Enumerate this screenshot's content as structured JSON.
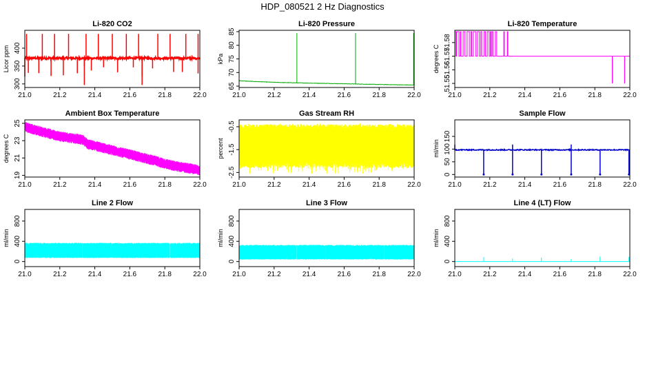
{
  "title": "HDP_080521  2 Hz Diagnostics",
  "chart_data": [
    {
      "type": "line",
      "title": "Li-820 CO2",
      "xlabel": "",
      "ylabel": "Licor ppm",
      "color": "#ff0000",
      "xlim": [
        21.0,
        22.0
      ],
      "ylim": [
        290,
        450
      ],
      "xticks": [
        "21.0",
        "21.2",
        "21.4",
        "21.6",
        "21.8",
        "22.0"
      ],
      "yticks": [
        "300",
        "350",
        "400"
      ],
      "series": [
        {
          "name": "CO2",
          "baseline": 372,
          "noise": 3,
          "spikes_up": [
            21.01,
            21.1,
            21.17,
            21.25,
            21.35,
            21.42,
            21.5,
            21.58,
            21.65,
            21.76,
            21.83,
            21.92,
            21.99
          ],
          "spike_up_value": 440,
          "spikes_down": [
            21.0,
            21.02,
            21.08,
            21.15,
            21.22,
            21.3,
            21.34,
            21.38,
            21.45,
            21.53,
            21.62,
            21.67,
            21.73,
            21.85,
            21.9,
            21.99
          ],
          "spike_down_value": 320,
          "deep_down": [
            21.34,
            21.67
          ],
          "deep_down_value": 297
        }
      ]
    },
    {
      "type": "line",
      "title": "Li-820 Pressure",
      "xlabel": "",
      "ylabel": "kPa",
      "color": "#00aa00",
      "xlim": [
        21.0,
        22.0
      ],
      "ylim": [
        64.5,
        85.5
      ],
      "xticks": [
        "21.0",
        "21.2",
        "21.4",
        "21.6",
        "21.8",
        "22.0"
      ],
      "yticks": [
        "65",
        "70",
        "75",
        "80",
        "85"
      ],
      "series": [
        {
          "name": "Pressure",
          "points": [
            [
              21.0,
              67.0
            ],
            [
              21.05,
              66.8
            ],
            [
              21.2,
              66.4
            ],
            [
              21.33,
              66.2
            ],
            [
              21.5,
              66.0
            ],
            [
              21.66,
              65.8
            ],
            [
              21.8,
              65.6
            ],
            [
              22.0,
              65.4
            ]
          ],
          "spikes": [
            [
              21.0,
              83.5
            ],
            [
              21.33,
              84.5
            ],
            [
              21.665,
              84.5
            ],
            [
              21.997,
              84.5
            ]
          ]
        }
      ]
    },
    {
      "type": "line",
      "title": "Li-820 Temperature",
      "xlabel": "",
      "ylabel": "degrees C",
      "color": "#ff00ff",
      "xlim": [
        21.0,
        22.0
      ],
      "ylim": [
        51.547,
        51.589
      ],
      "xticks": [
        "21.0",
        "21.2",
        "21.4",
        "21.6",
        "21.8",
        "22.0"
      ],
      "yticks": [
        "51.55",
        "51.56",
        "51.57",
        "51.58"
      ],
      "series": [
        {
          "name": "Temperature",
          "low": 51.57,
          "high": 51.588,
          "toggle_until": 21.24,
          "extra_toggles": [
            21.28,
            21.3
          ],
          "drops": [
            21.9,
            21.97
          ],
          "drop_value": 51.55
        }
      ]
    },
    {
      "type": "line",
      "title": "Ambient Box Temperature",
      "xlabel": "",
      "ylabel": "degrees C",
      "color": "#ff00ff",
      "xlim": [
        21.0,
        22.0
      ],
      "ylim": [
        18.8,
        25.4
      ],
      "xticks": [
        "21.0",
        "21.2",
        "21.4",
        "21.6",
        "21.8",
        "22.0"
      ],
      "yticks": [
        "19",
        "21",
        "23",
        "25"
      ],
      "series": [
        {
          "name": "Ambient",
          "points": [
            [
              21.0,
              24.6
            ],
            [
              21.1,
              24.0
            ],
            [
              21.2,
              23.5
            ],
            [
              21.33,
              23.1
            ],
            [
              21.36,
              22.6
            ],
            [
              21.5,
              21.9
            ],
            [
              21.7,
              20.9
            ],
            [
              21.85,
              20.1
            ],
            [
              22.0,
              19.6
            ]
          ],
          "band": 0.6
        }
      ]
    },
    {
      "type": "line",
      "title": "Gas Stream RH",
      "xlabel": "",
      "ylabel": "percent",
      "color": "#ffff00",
      "xlim": [
        21.0,
        22.0
      ],
      "ylim": [
        -2.7,
        -0.2
      ],
      "xticks": [
        "21.0",
        "21.2",
        "21.4",
        "21.6",
        "21.8",
        "22.0"
      ],
      "yticks": [
        "-2.5",
        "-1.5",
        "-0.5"
      ],
      "series": [
        {
          "name": "RH",
          "band_low": -2.0,
          "band_high": -0.6,
          "outer_low": -2.55,
          "outer_high": -0.35
        }
      ]
    },
    {
      "type": "line",
      "title": "Sample Flow",
      "xlabel": "",
      "ylabel": "ml/min",
      "color": "#0000cc",
      "xlim": [
        21.0,
        22.0
      ],
      "ylim": [
        -10,
        215
      ],
      "xticks": [
        "21.0",
        "21.2",
        "21.4",
        "21.6",
        "21.8",
        "22.0"
      ],
      "yticks": [
        "0",
        "50",
        "100",
        "150"
      ],
      "series": [
        {
          "name": "Sample",
          "baseline": 97,
          "noise": 2,
          "drops": [
            21.165,
            21.33,
            21.495,
            21.665,
            21.83,
            21.995
          ],
          "drop_value": 0,
          "bumps": [
            21.0,
            21.33,
            21.665
          ],
          "bump_value": 118
        }
      ]
    },
    {
      "type": "line",
      "title": "Line 2 Flow",
      "xlabel": "",
      "ylabel": "ml/min",
      "color": "#00ffff",
      "xlim": [
        21.0,
        22.0
      ],
      "ylim": [
        -100,
        1030
      ],
      "xticks": [
        "21.0",
        "21.2",
        "21.4",
        "21.6",
        "21.8",
        "22.0"
      ],
      "yticks": [
        "0",
        "400",
        "800"
      ],
      "series": [
        {
          "name": "Line2",
          "band_low": 90,
          "band_high": 340,
          "gaps": [
            21.165,
            21.33,
            21.495,
            21.665,
            21.83
          ]
        }
      ]
    },
    {
      "type": "line",
      "title": "Line 3 Flow",
      "xlabel": "",
      "ylabel": "ml/min",
      "color": "#00ffff",
      "xlim": [
        21.0,
        22.0
      ],
      "ylim": [
        -100,
        1030
      ],
      "xticks": [
        "21.0",
        "21.2",
        "21.4",
        "21.6",
        "21.8",
        "22.0"
      ],
      "yticks": [
        "0",
        "400",
        "800"
      ],
      "series": [
        {
          "name": "Line3",
          "band_low": 60,
          "band_high": 300,
          "gaps": [
            21.165,
            21.33,
            21.495,
            21.665,
            21.83
          ]
        }
      ]
    },
    {
      "type": "line",
      "title": "Line 4 (LT) Flow",
      "xlabel": "",
      "ylabel": "ml/min",
      "color": "#00ffff",
      "xlim": [
        21.0,
        22.0
      ],
      "ylim": [
        -100,
        1030
      ],
      "xticks": [
        "21.0",
        "21.2",
        "21.4",
        "21.6",
        "21.8",
        "22.0"
      ],
      "yticks": [
        "0",
        "400",
        "800"
      ],
      "series": [
        {
          "name": "Line4",
          "baseline": 0,
          "spikes": [
            [
              21.165,
              90
            ],
            [
              21.33,
              60
            ],
            [
              21.495,
              80
            ],
            [
              21.665,
              50
            ],
            [
              21.83,
              100
            ],
            [
              21.995,
              90
            ]
          ]
        }
      ]
    }
  ]
}
